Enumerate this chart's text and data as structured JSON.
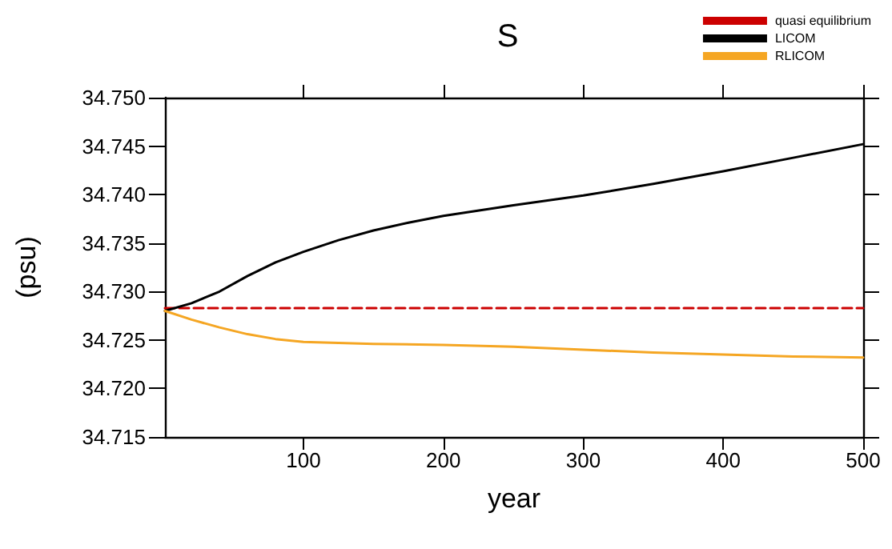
{
  "chart_data": {
    "type": "line",
    "title": "S",
    "xlabel": "year",
    "ylabel": "(psu)",
    "xlim": [
      1,
      500
    ],
    "xticks": [
      100,
      200,
      300,
      400,
      500
    ],
    "ylim": [
      34.715,
      34.75
    ],
    "yticks": [
      34.715,
      {
        "value": 34.72,
        "label": "34.720"
      },
      34.725,
      {
        "value": 34.73,
        "label": "34.730"
      },
      34.735,
      {
        "value": 34.74,
        "label": "34.740"
      },
      34.745,
      {
        "value": 34.75,
        "label": "34.750"
      }
    ],
    "grid": false,
    "legend": "top right",
    "marker": "none",
    "series": [
      {
        "name": "quasi equilibrium",
        "color": "#cc0000",
        "line_style": "dashed",
        "x": [
          1,
          500
        ],
        "values": [
          34.7283,
          34.7283
        ]
      },
      {
        "name": "LICOM",
        "color": "#000000",
        "line_style": "solid",
        "x": [
          1,
          20,
          40,
          60,
          80,
          100,
          125,
          150,
          175,
          200,
          250,
          300,
          350,
          400,
          450,
          500
        ],
        "values": [
          34.728,
          34.7288,
          34.73,
          34.7316,
          34.733,
          34.7341,
          34.7353,
          34.7363,
          34.7371,
          34.7378,
          34.7389,
          34.7399,
          34.7411,
          34.7424,
          34.7438,
          34.7452
        ]
      },
      {
        "name": "RLICOM",
        "color": "#f5a623",
        "line_style": "solid",
        "x": [
          1,
          20,
          40,
          60,
          80,
          100,
          150,
          200,
          250,
          300,
          350,
          400,
          450,
          500
        ],
        "values": [
          34.728,
          34.7271,
          34.7263,
          34.7256,
          34.7251,
          34.7248,
          34.7246,
          34.7245,
          34.7243,
          34.724,
          34.7237,
          34.7235,
          34.7233,
          34.7232
        ]
      }
    ]
  }
}
